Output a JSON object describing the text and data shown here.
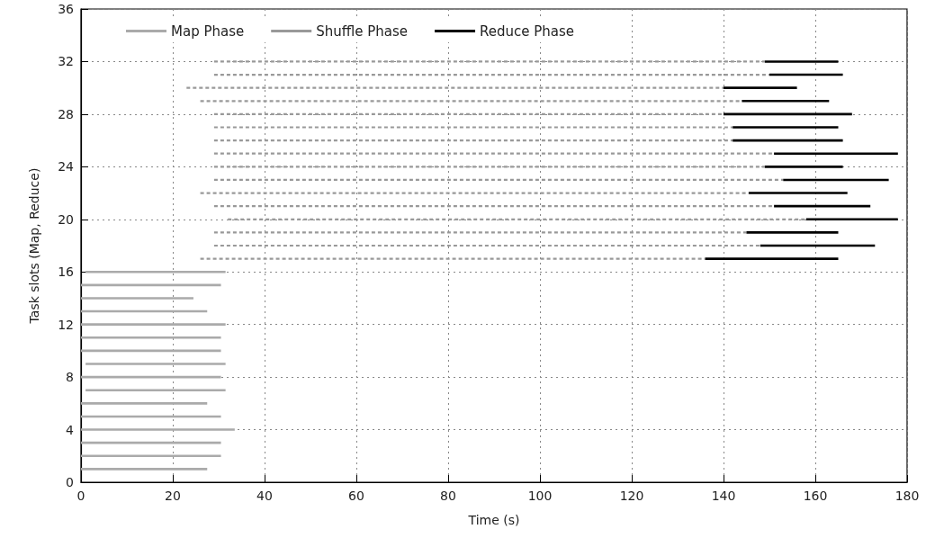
{
  "chart_data": {
    "type": "line",
    "xlabel": "Time (s)",
    "ylabel": "Task slots (Map, Reduce)",
    "xlim": [
      0,
      180
    ],
    "xticks": [
      0,
      20,
      40,
      60,
      80,
      100,
      120,
      140,
      160,
      180
    ],
    "ylim": [
      0,
      36
    ],
    "yticks": [
      0,
      4,
      8,
      12,
      16,
      20,
      24,
      28,
      32,
      36
    ],
    "grid": true,
    "legend": "top left",
    "marker": "none",
    "series": [
      {
        "name": "Map Phase",
        "color": "#aaaaaa",
        "line_style": "solid",
        "x": [
          0,
          27.5
        ],
        "values": [
          1,
          1
        ]
      },
      {
        "color": "#aaaaaa",
        "line_style": "solid",
        "x": [
          0,
          30.5
        ],
        "values": [
          2,
          2
        ]
      },
      {
        "color": "#aaaaaa",
        "line_style": "solid",
        "x": [
          0,
          30.5
        ],
        "values": [
          3,
          3
        ]
      },
      {
        "color": "#aaaaaa",
        "line_style": "solid",
        "x": [
          0,
          33.5
        ],
        "values": [
          4,
          4
        ]
      },
      {
        "color": "#aaaaaa",
        "line_style": "solid",
        "x": [
          0,
          30.5
        ],
        "values": [
          5,
          5
        ]
      },
      {
        "color": "#aaaaaa",
        "line_style": "solid",
        "x": [
          0,
          27.5
        ],
        "values": [
          6,
          6
        ]
      },
      {
        "color": "#aaaaaa",
        "line_style": "solid",
        "x": [
          1,
          31.5
        ],
        "values": [
          7,
          7
        ]
      },
      {
        "color": "#aaaaaa",
        "line_style": "solid",
        "x": [
          0,
          30.5
        ],
        "values": [
          8,
          8
        ]
      },
      {
        "color": "#aaaaaa",
        "line_style": "solid",
        "x": [
          1,
          31.5
        ],
        "values": [
          9,
          9
        ]
      },
      {
        "color": "#aaaaaa",
        "line_style": "solid",
        "x": [
          0,
          30.5
        ],
        "values": [
          10,
          10
        ]
      },
      {
        "color": "#aaaaaa",
        "line_style": "solid",
        "x": [
          0,
          30.5
        ],
        "values": [
          11,
          11
        ]
      },
      {
        "color": "#aaaaaa",
        "line_style": "solid",
        "x": [
          0,
          31.5
        ],
        "values": [
          12,
          12
        ]
      },
      {
        "color": "#aaaaaa",
        "line_style": "solid",
        "x": [
          0,
          27.5
        ],
        "values": [
          13,
          13
        ]
      },
      {
        "color": "#aaaaaa",
        "line_style": "solid",
        "x": [
          0,
          24.5
        ],
        "values": [
          14,
          14
        ]
      },
      {
        "color": "#aaaaaa",
        "line_style": "solid",
        "x": [
          0,
          30.5
        ],
        "values": [
          15,
          15
        ]
      },
      {
        "color": "#aaaaaa",
        "line_style": "solid",
        "x": [
          1,
          31.5
        ],
        "values": [
          16,
          16
        ]
      },
      {
        "name": "Shuffle Phase",
        "color": "#999999",
        "line_style": "dashed",
        "x": [
          26,
          136
        ],
        "values": [
          17,
          17
        ]
      },
      {
        "color": "#999999",
        "line_style": "dashed",
        "x": [
          29,
          148
        ],
        "values": [
          18,
          18
        ]
      },
      {
        "color": "#999999",
        "line_style": "dashed",
        "x": [
          29,
          145
        ],
        "values": [
          19,
          19
        ]
      },
      {
        "color": "#999999",
        "line_style": "dashed",
        "x": [
          32,
          158
        ],
        "values": [
          20,
          20
        ]
      },
      {
        "color": "#999999",
        "line_style": "dashed",
        "x": [
          29,
          151
        ],
        "values": [
          21,
          21
        ]
      },
      {
        "color": "#999999",
        "line_style": "dashed",
        "x": [
          26,
          145.5
        ],
        "values": [
          22,
          22
        ]
      },
      {
        "color": "#999999",
        "line_style": "dashed",
        "x": [
          29,
          153
        ],
        "values": [
          23,
          23
        ]
      },
      {
        "color": "#999999",
        "line_style": "dashed",
        "x": [
          29,
          149
        ],
        "values": [
          24,
          24
        ]
      },
      {
        "color": "#999999",
        "line_style": "dashed",
        "x": [
          29,
          151
        ],
        "values": [
          25,
          25
        ]
      },
      {
        "color": "#999999",
        "line_style": "dashed",
        "x": [
          29,
          142
        ],
        "values": [
          26,
          26
        ]
      },
      {
        "color": "#999999",
        "line_style": "dashed",
        "x": [
          29,
          142
        ],
        "values": [
          27,
          27
        ]
      },
      {
        "color": "#999999",
        "line_style": "dashed",
        "x": [
          29,
          140
        ],
        "values": [
          28,
          28
        ]
      },
      {
        "color": "#999999",
        "line_style": "dashed",
        "x": [
          26,
          144
        ],
        "values": [
          29,
          29
        ]
      },
      {
        "color": "#999999",
        "line_style": "dashed",
        "x": [
          23,
          140
        ],
        "values": [
          30,
          30
        ]
      },
      {
        "color": "#999999",
        "line_style": "dashed",
        "x": [
          29,
          150
        ],
        "values": [
          31,
          31
        ]
      },
      {
        "color": "#999999",
        "line_style": "dashed",
        "x": [
          29,
          149
        ],
        "values": [
          32,
          32
        ]
      },
      {
        "name": "Reduce Phase",
        "color": "#000000",
        "line_style": "solid",
        "x": [
          136,
          165
        ],
        "values": [
          17,
          17
        ]
      },
      {
        "color": "#000000",
        "line_style": "solid",
        "x": [
          148,
          173
        ],
        "values": [
          18,
          18
        ]
      },
      {
        "color": "#000000",
        "line_style": "solid",
        "x": [
          145,
          165
        ],
        "values": [
          19,
          19
        ]
      },
      {
        "color": "#000000",
        "line_style": "solid",
        "x": [
          158,
          178
        ],
        "values": [
          20,
          20
        ]
      },
      {
        "color": "#000000",
        "line_style": "solid",
        "x": [
          151,
          172
        ],
        "values": [
          21,
          21
        ]
      },
      {
        "color": "#000000",
        "line_style": "solid",
        "x": [
          145.5,
          167
        ],
        "values": [
          22,
          22
        ]
      },
      {
        "color": "#000000",
        "line_style": "solid",
        "x": [
          153,
          176
        ],
        "values": [
          23,
          23
        ]
      },
      {
        "color": "#000000",
        "line_style": "solid",
        "x": [
          149,
          166
        ],
        "values": [
          24,
          24
        ]
      },
      {
        "color": "#000000",
        "line_style": "solid",
        "x": [
          151,
          178
        ],
        "values": [
          25,
          25
        ]
      },
      {
        "color": "#000000",
        "line_style": "solid",
        "x": [
          142,
          166
        ],
        "values": [
          26,
          26
        ]
      },
      {
        "color": "#000000",
        "line_style": "solid",
        "x": [
          142,
          165
        ],
        "values": [
          27,
          27
        ]
      },
      {
        "color": "#000000",
        "line_style": "solid",
        "x": [
          140,
          168
        ],
        "values": [
          28,
          28
        ]
      },
      {
        "color": "#000000",
        "line_style": "solid",
        "x": [
          144,
          163
        ],
        "values": [
          29,
          29
        ]
      },
      {
        "color": "#000000",
        "line_style": "solid",
        "x": [
          140,
          156
        ],
        "values": [
          30,
          30
        ]
      },
      {
        "color": "#000000",
        "line_style": "solid",
        "x": [
          150,
          166
        ],
        "values": [
          31,
          31
        ]
      },
      {
        "color": "#000000",
        "line_style": "solid",
        "x": [
          149,
          165
        ],
        "values": [
          32,
          32
        ]
      }
    ]
  }
}
